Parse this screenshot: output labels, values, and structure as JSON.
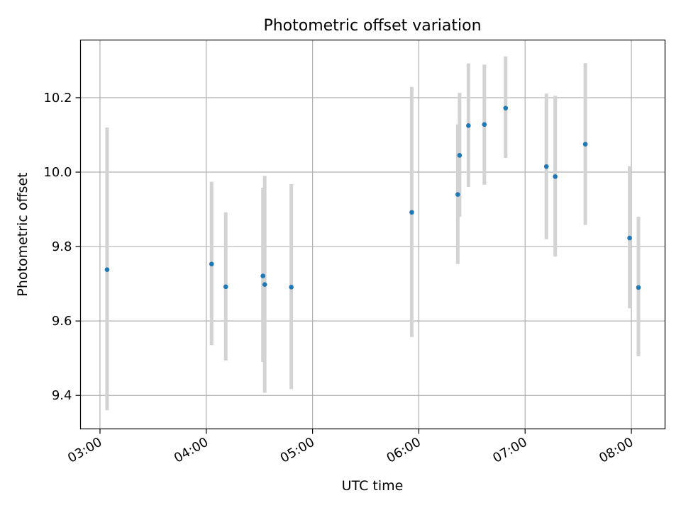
{
  "chart_data": {
    "type": "scatter",
    "title": "Photometric offset variation",
    "xlabel": "UTC time",
    "ylabel": "Photometric offset",
    "xlim": [
      "02:49",
      "08:19"
    ],
    "ylim": [
      9.31,
      10.355
    ],
    "grid": true,
    "x_ticks": [
      "03:00",
      "04:00",
      "05:00",
      "06:00",
      "07:00",
      "08:00"
    ],
    "y_ticks": [
      9.4,
      9.6,
      9.8,
      10.0,
      10.2
    ],
    "colors": {
      "point": "#1f77b4",
      "errorbar": "#d3d3d3",
      "grid": "#b0b0b0"
    },
    "points": [
      {
        "x": "03:04",
        "y": 9.738,
        "yerr_low": 9.36,
        "yerr_high": 10.12
      },
      {
        "x": "04:03",
        "y": 9.753,
        "yerr_low": 9.535,
        "yerr_high": 9.974
      },
      {
        "x": "04:11",
        "y": 9.692,
        "yerr_low": 9.494,
        "yerr_high": 9.892
      },
      {
        "x": "04:32",
        "y": 9.721,
        "yerr_low": 9.49,
        "yerr_high": 9.958
      },
      {
        "x": "04:33",
        "y": 9.698,
        "yerr_low": 9.407,
        "yerr_high": 9.99
      },
      {
        "x": "04:48",
        "y": 9.691,
        "yerr_low": 9.417,
        "yerr_high": 9.968
      },
      {
        "x": "05:56",
        "y": 9.892,
        "yerr_low": 9.557,
        "yerr_high": 10.229
      },
      {
        "x": "06:22",
        "y": 9.94,
        "yerr_low": 9.753,
        "yerr_high": 10.128
      },
      {
        "x": "06:23",
        "y": 10.045,
        "yerr_low": 9.88,
        "yerr_high": 10.213
      },
      {
        "x": "06:28",
        "y": 10.125,
        "yerr_low": 9.96,
        "yerr_high": 10.292
      },
      {
        "x": "06:37",
        "y": 10.128,
        "yerr_low": 9.966,
        "yerr_high": 10.289
      },
      {
        "x": "06:49",
        "y": 10.172,
        "yerr_low": 10.038,
        "yerr_high": 10.311
      },
      {
        "x": "07:12",
        "y": 10.015,
        "yerr_low": 9.82,
        "yerr_high": 10.211
      },
      {
        "x": "07:17",
        "y": 9.988,
        "yerr_low": 9.773,
        "yerr_high": 10.205
      },
      {
        "x": "07:34",
        "y": 10.075,
        "yerr_low": 9.858,
        "yerr_high": 10.293
      },
      {
        "x": "07:59",
        "y": 9.823,
        "yerr_low": 9.634,
        "yerr_high": 10.016
      },
      {
        "x": "08:04",
        "y": 9.69,
        "yerr_low": 9.505,
        "yerr_high": 9.88
      }
    ]
  }
}
